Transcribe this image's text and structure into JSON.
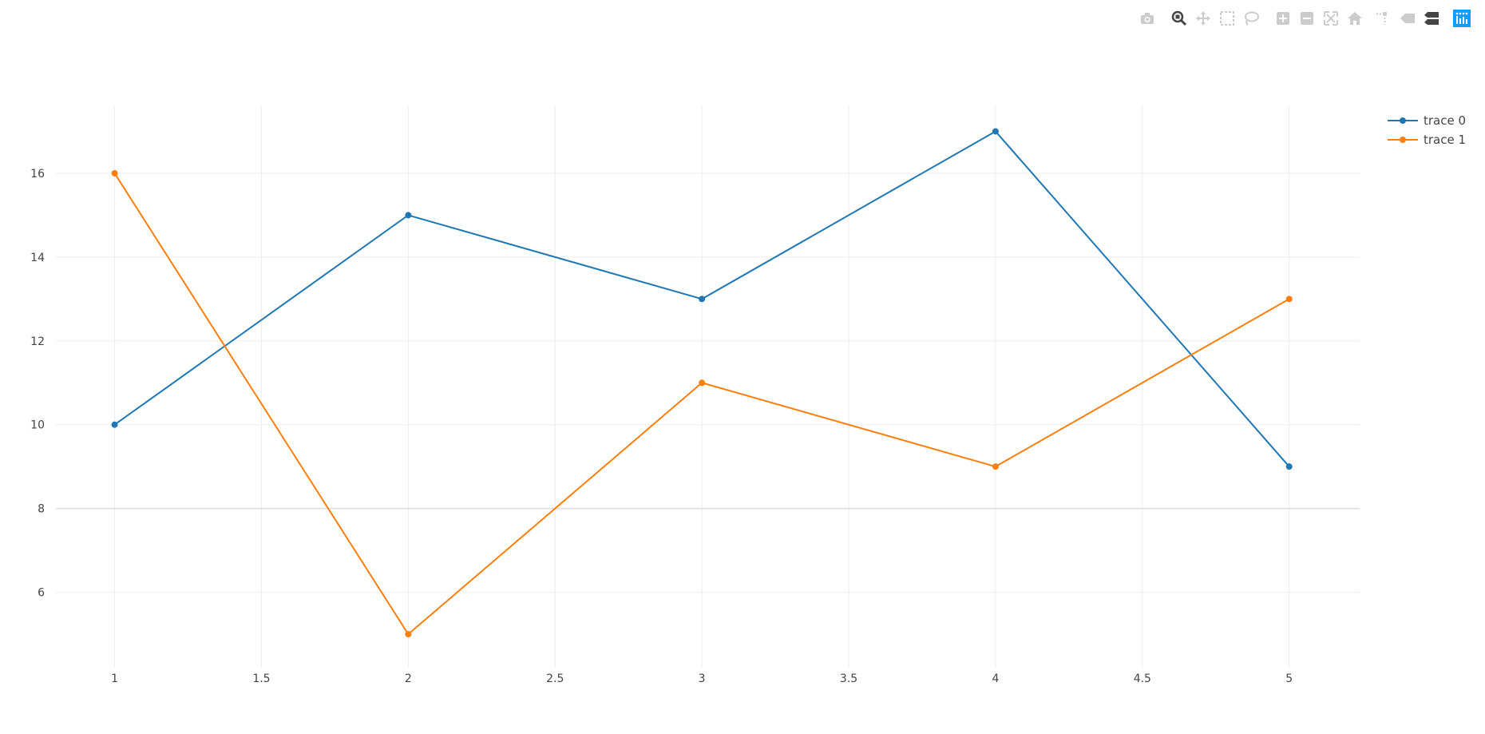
{
  "modebar": {
    "buttons": [
      {
        "name": "camera-icon",
        "tooltip": "Download plot as a png"
      },
      {
        "name": "zoom-icon",
        "tooltip": "Zoom",
        "active": true
      },
      {
        "name": "pan-icon",
        "tooltip": "Pan"
      },
      {
        "name": "box-select-icon",
        "tooltip": "Box Select"
      },
      {
        "name": "lasso-select-icon",
        "tooltip": "Lasso Select"
      },
      {
        "name": "zoom-in-icon",
        "tooltip": "Zoom in"
      },
      {
        "name": "zoom-out-icon",
        "tooltip": "Zoom out"
      },
      {
        "name": "autoscale-icon",
        "tooltip": "Autoscale"
      },
      {
        "name": "home-icon",
        "tooltip": "Reset axes"
      },
      {
        "name": "spike-lines-icon",
        "tooltip": "Toggle Spike Lines"
      },
      {
        "name": "hover-closest-icon",
        "tooltip": "Show closest data on hover"
      },
      {
        "name": "hover-compare-icon",
        "tooltip": "Compare data on hover"
      },
      {
        "name": "plotly-logo-icon",
        "tooltip": "Produced with Plotly"
      }
    ],
    "icon_color": "#cccccc",
    "active_color": "#444444",
    "logo_color": "#119dff"
  },
  "chart_data": {
    "type": "line",
    "title": "",
    "xlabel": "",
    "ylabel": "",
    "xlim": [
      0.8,
      5.24
    ],
    "ylim": [
      4.2,
      17.6
    ],
    "x_ticks": [
      1,
      1.5,
      2,
      2.5,
      3,
      3.5,
      4,
      4.5,
      5
    ],
    "x_tick_labels": [
      "1",
      "1.5",
      "2",
      "2.5",
      "3",
      "3.5",
      "4",
      "4.5",
      "5"
    ],
    "y_ticks": [
      6,
      8,
      10,
      12,
      14,
      16
    ],
    "y_tick_labels": [
      "6",
      "8",
      "10",
      "12",
      "14",
      "16"
    ],
    "grid": true,
    "legend_position": "top-right",
    "x": [
      1,
      2,
      3,
      4,
      5
    ],
    "series": [
      {
        "name": "trace 0",
        "values": [
          10,
          15,
          13,
          17,
          9
        ],
        "color": "#1f77b4",
        "mode": "lines+markers"
      },
      {
        "name": "trace 1",
        "values": [
          16,
          5,
          11,
          9,
          13
        ],
        "color": "#ff7f0e",
        "mode": "lines+markers"
      }
    ],
    "grid_color": "#eeeeee",
    "zeroline_color": "#dddddd"
  }
}
